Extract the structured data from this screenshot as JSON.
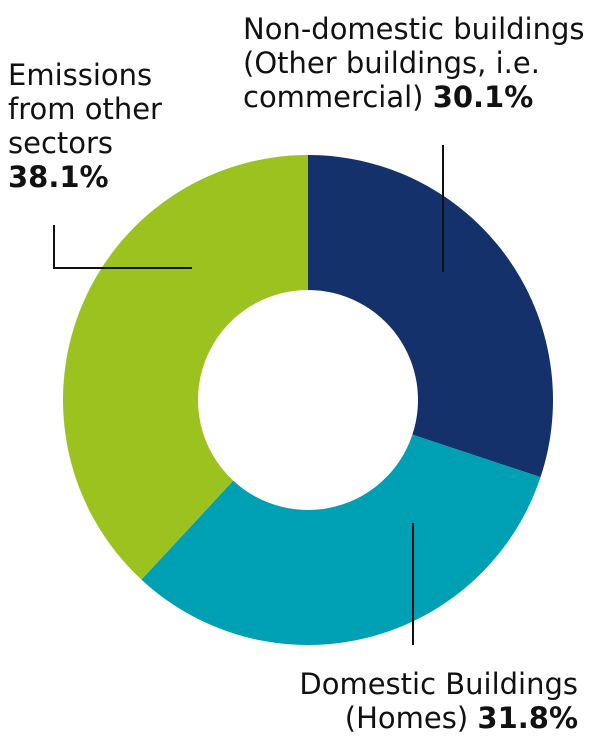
{
  "chart_data": {
    "type": "pie",
    "donut": true,
    "title": "",
    "slices": [
      {
        "line1": "Non-domestic buildings",
        "line2": "(Other buildings, i.e.",
        "line3": "commercial)",
        "pct_label": "30.1%",
        "value": 30.1,
        "color": "#14316b"
      },
      {
        "line1": "Domestic Buildings",
        "line2": "(Homes)",
        "pct_label": "31.8%",
        "value": 31.8,
        "color": "#00a0b4"
      },
      {
        "line1": "Emissions",
        "line2": "from other",
        "line3": "sectors",
        "pct_label": "38.1%",
        "value": 38.1,
        "color": "#9cc21f"
      }
    ]
  }
}
